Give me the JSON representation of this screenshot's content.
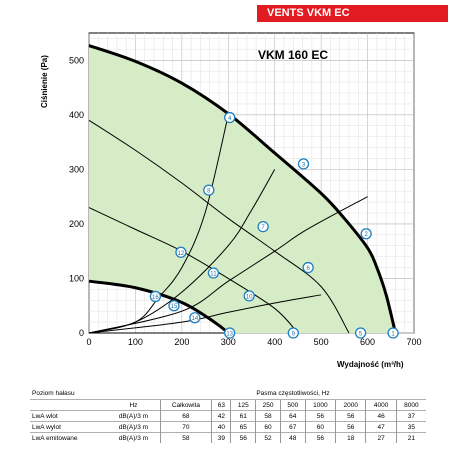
{
  "brand_banner": "VENTS VKM EC",
  "chart_data": {
    "type": "line",
    "title": "VKM 160 EC",
    "xlabel": "Wydajność (m³/h)",
    "ylabel": "Ciśnienie (Pa)",
    "xlim": [
      0,
      700
    ],
    "ylim": [
      0,
      550
    ],
    "xticks": [
      0,
      100,
      200,
      300,
      400,
      500,
      600,
      700
    ],
    "yticks": [
      0,
      100,
      200,
      300,
      400,
      500
    ],
    "grid": true,
    "fill_color": "#d6ecc6",
    "fan_curves": [
      {
        "x": [
          0,
          100,
          200,
          300,
          400,
          500,
          550,
          600,
          620,
          640,
          660
        ],
        "y": [
          527,
          498,
          458,
          402,
          330,
          256,
          210,
          156,
          120,
          70,
          0
        ]
      },
      {
        "x": [
          0,
          100,
          200,
          270,
          300
        ],
        "y": [
          95,
          83,
          56,
          20,
          0
        ]
      }
    ],
    "speed_curves": [
      {
        "x": [
          0,
          100,
          200,
          300,
          400,
          500,
          560
        ],
        "y": [
          390,
          335,
          275,
          210,
          150,
          85,
          0
        ]
      },
      {
        "x": [
          0,
          100,
          200,
          300,
          400,
          450
        ],
        "y": [
          230,
          190,
          150,
          100,
          45,
          0
        ]
      },
      {
        "x": [
          0,
          100,
          200,
          300
        ],
        "y": [
          0,
          0,
          0,
          0
        ]
      }
    ],
    "system_curves": [
      {
        "x": [
          0,
          100,
          150,
          200,
          250,
          300
        ],
        "y": [
          0,
          20,
          65,
          120,
          220,
          400
        ]
      },
      {
        "x": [
          0,
          100,
          200,
          300,
          350,
          400
        ],
        "y": [
          0,
          20,
          75,
          160,
          225,
          300
        ]
      },
      {
        "x": [
          0,
          200,
          300,
          400,
          470,
          600
        ],
        "y": [
          0,
          40,
          95,
          150,
          190,
          250
        ]
      },
      {
        "x": [
          0,
          200,
          300,
          400,
          500
        ],
        "y": [
          0,
          20,
          38,
          55,
          70
        ]
      }
    ],
    "markers": [
      {
        "label": "1",
        "x": 655,
        "y": 0
      },
      {
        "label": "2",
        "x": 597,
        "y": 182
      },
      {
        "label": "3",
        "x": 462,
        "y": 310
      },
      {
        "label": "4",
        "x": 303,
        "y": 395
      },
      {
        "label": "5",
        "x": 585,
        "y": 0
      },
      {
        "label": "6",
        "x": 472,
        "y": 120
      },
      {
        "label": "7",
        "x": 375,
        "y": 195
      },
      {
        "label": "8",
        "x": 258,
        "y": 262
      },
      {
        "label": "9",
        "x": 440,
        "y": 0
      },
      {
        "label": "10",
        "x": 345,
        "y": 68
      },
      {
        "label": "11",
        "x": 268,
        "y": 110
      },
      {
        "label": "12",
        "x": 198,
        "y": 148
      },
      {
        "label": "13",
        "x": 303,
        "y": 0
      },
      {
        "label": "14",
        "x": 228,
        "y": 28
      },
      {
        "label": "15",
        "x": 183,
        "y": 50
      },
      {
        "label": "16",
        "x": 143,
        "y": 67
      }
    ]
  },
  "noise_table": {
    "col_header_left": "Poziom hałasu",
    "col_header_right": "Pasma częstotliwości, Hz",
    "unit_header": "Hz",
    "total_header": "Całkowita",
    "bands": [
      "63",
      "125",
      "250",
      "500",
      "1000",
      "2000",
      "4000",
      "8000"
    ],
    "rows": [
      {
        "label": "LwA wlot",
        "unit": "dB(A)/3 m",
        "total": "68",
        "values": [
          "42",
          "61",
          "58",
          "64",
          "56",
          "56",
          "46",
          "37"
        ]
      },
      {
        "label": "LwA wylot",
        "unit": "dB(A)/3 m",
        "total": "70",
        "values": [
          "40",
          "65",
          "60",
          "67",
          "60",
          "56",
          "47",
          "35"
        ]
      },
      {
        "label": "LwA emitowane",
        "unit": "dB(A)/3 m",
        "total": "58",
        "values": [
          "39",
          "56",
          "52",
          "48",
          "56",
          "18",
          "27",
          "21"
        ]
      }
    ]
  }
}
